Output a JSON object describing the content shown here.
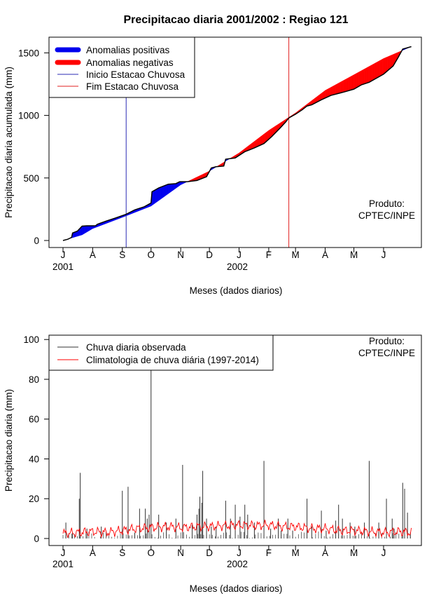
{
  "title": "Precipitacao diaria 2001/2002 : Regiao 121",
  "colors": {
    "positive": "#0000ee",
    "negative": "#ff0000",
    "start_line": "#2b2bb5",
    "end_line": "#e02020",
    "observed": "#333333",
    "climatology": "#ff0000",
    "axis": "#000000"
  },
  "chart_data": [
    {
      "type": "area",
      "name": "accumulated",
      "ylabel": "Precipitacao diaria acumulada (mm)",
      "xlabel": "Meses (dados diarios)",
      "ylim": [
        0,
        1550
      ],
      "yticks": [
        0,
        500,
        1000,
        1500
      ],
      "months": [
        "J",
        "A",
        "S",
        "O",
        "N",
        "D",
        "J",
        "F",
        "M",
        "A",
        "M",
        "J"
      ],
      "years": [
        "2001",
        "2002"
      ],
      "product": [
        "Produto:",
        "CPTEC/INPE"
      ],
      "legend": [
        {
          "label": "Anomalias positivas",
          "kind": "thick",
          "color": "#0000ee"
        },
        {
          "label": "Anomalias negativas",
          "kind": "thick",
          "color": "#ff0000"
        },
        {
          "label": "Inicio Estacao Chuvosa",
          "kind": "thin",
          "color": "#2b2bb5"
        },
        {
          "label": "Fim Estacao Chuvosa",
          "kind": "thin",
          "color": "#e02020"
        }
      ],
      "rainy_season_start_day": 66,
      "rainy_season_end_day": 236,
      "clim_points": [
        [
          0,
          0
        ],
        [
          20,
          45
        ],
        [
          31,
          95
        ],
        [
          62,
          185
        ],
        [
          92,
          275
        ],
        [
          123,
          445
        ],
        [
          153,
          555
        ],
        [
          184,
          700
        ],
        [
          215,
          880
        ],
        [
          243,
          1020
        ],
        [
          274,
          1200
        ],
        [
          304,
          1325
        ],
        [
          335,
          1455
        ],
        [
          364,
          1550
        ]
      ],
      "obs_points": [
        [
          0,
          0
        ],
        [
          5,
          10
        ],
        [
          9,
          25
        ],
        [
          10,
          60
        ],
        [
          15,
          75
        ],
        [
          20,
          115
        ],
        [
          25,
          118
        ],
        [
          34,
          118
        ],
        [
          36,
          130
        ],
        [
          45,
          155
        ],
        [
          55,
          180
        ],
        [
          66,
          210
        ],
        [
          75,
          245
        ],
        [
          85,
          270
        ],
        [
          92,
          300
        ],
        [
          93,
          390
        ],
        [
          100,
          420
        ],
        [
          110,
          450
        ],
        [
          118,
          455
        ],
        [
          122,
          470
        ],
        [
          130,
          470
        ],
        [
          140,
          480
        ],
        [
          150,
          510
        ],
        [
          155,
          580
        ],
        [
          160,
          590
        ],
        [
          168,
          595
        ],
        [
          170,
          650
        ],
        [
          180,
          660
        ],
        [
          190,
          710
        ],
        [
          195,
          725
        ],
        [
          200,
          740
        ],
        [
          210,
          775
        ],
        [
          218,
          830
        ],
        [
          227,
          900
        ],
        [
          233,
          950
        ],
        [
          236,
          980
        ],
        [
          243,
          1010
        ],
        [
          250,
          1045
        ],
        [
          255,
          1075
        ],
        [
          260,
          1085
        ],
        [
          270,
          1125
        ],
        [
          280,
          1160
        ],
        [
          290,
          1180
        ],
        [
          295,
          1190
        ],
        [
          304,
          1210
        ],
        [
          312,
          1245
        ],
        [
          320,
          1265
        ],
        [
          335,
          1330
        ],
        [
          345,
          1395
        ],
        [
          350,
          1460
        ],
        [
          355,
          1530
        ],
        [
          364,
          1550
        ]
      ]
    },
    {
      "type": "line",
      "name": "daily",
      "ylabel": "Precipitacao diaria (mm)",
      "xlabel": "Meses (dados diarios)",
      "ylim": [
        0,
        100
      ],
      "yticks": [
        0,
        20,
        40,
        60,
        80,
        100
      ],
      "months": [
        "J",
        "A",
        "S",
        "O",
        "N",
        "D",
        "J",
        "F",
        "M",
        "A",
        "M",
        "J"
      ],
      "years": [
        "2001",
        "2002"
      ],
      "product": [
        "Produto:",
        "CPTEC/INPE"
      ],
      "legend": [
        {
          "label": "Chuva diaria observada",
          "kind": "thin",
          "color": "#333333"
        },
        {
          "label": "Climatologia de chuva diária (1997-2014)",
          "kind": "thin",
          "color": "#ff0000"
        }
      ],
      "observed_spikes": [
        [
          3,
          8
        ],
        [
          10,
          3
        ],
        [
          17,
          20
        ],
        [
          18,
          33
        ],
        [
          25,
          5
        ],
        [
          40,
          6
        ],
        [
          62,
          24
        ],
        [
          68,
          26
        ],
        [
          75,
          3
        ],
        [
          80,
          15
        ],
        [
          86,
          15
        ],
        [
          88,
          10
        ],
        [
          90,
          12
        ],
        [
          92,
          86
        ],
        [
          100,
          12
        ],
        [
          108,
          8
        ],
        [
          118,
          10
        ],
        [
          125,
          37
        ],
        [
          135,
          7
        ],
        [
          140,
          12
        ],
        [
          142,
          15
        ],
        [
          143,
          21
        ],
        [
          145,
          18
        ],
        [
          146,
          34
        ],
        [
          150,
          10
        ],
        [
          155,
          6
        ],
        [
          160,
          6
        ],
        [
          170,
          19
        ],
        [
          175,
          10
        ],
        [
          180,
          17
        ],
        [
          185,
          11
        ],
        [
          190,
          17
        ],
        [
          193,
          12
        ],
        [
          200,
          8
        ],
        [
          210,
          39
        ],
        [
          217,
          5
        ],
        [
          225,
          10
        ],
        [
          228,
          4
        ],
        [
          235,
          10
        ],
        [
          240,
          4
        ],
        [
          255,
          20
        ],
        [
          260,
          6
        ],
        [
          270,
          14
        ],
        [
          275,
          4
        ],
        [
          285,
          9
        ],
        [
          288,
          17
        ],
        [
          292,
          10
        ],
        [
          300,
          8
        ],
        [
          305,
          6
        ],
        [
          315,
          8
        ],
        [
          320,
          39
        ],
        [
          330,
          8
        ],
        [
          338,
          20
        ],
        [
          344,
          10
        ],
        [
          346,
          5
        ],
        [
          355,
          28
        ],
        [
          357,
          25
        ],
        [
          360,
          13
        ],
        [
          363,
          3
        ]
      ],
      "climatology_points": [
        [
          0,
          2.5
        ],
        [
          15,
          3
        ],
        [
          31,
          3.5
        ],
        [
          45,
          3
        ],
        [
          62,
          4
        ],
        [
          76,
          5
        ],
        [
          92,
          5.5
        ],
        [
          110,
          6
        ],
        [
          123,
          5.5
        ],
        [
          140,
          6
        ],
        [
          153,
          6
        ],
        [
          170,
          6.5
        ],
        [
          184,
          6.8
        ],
        [
          200,
          6.5
        ],
        [
          215,
          6.8
        ],
        [
          230,
          6
        ],
        [
          243,
          6
        ],
        [
          260,
          5
        ],
        [
          274,
          5
        ],
        [
          290,
          4
        ],
        [
          304,
          4
        ],
        [
          320,
          3.5
        ],
        [
          335,
          3
        ],
        [
          350,
          3.5
        ],
        [
          364,
          3
        ]
      ]
    }
  ]
}
